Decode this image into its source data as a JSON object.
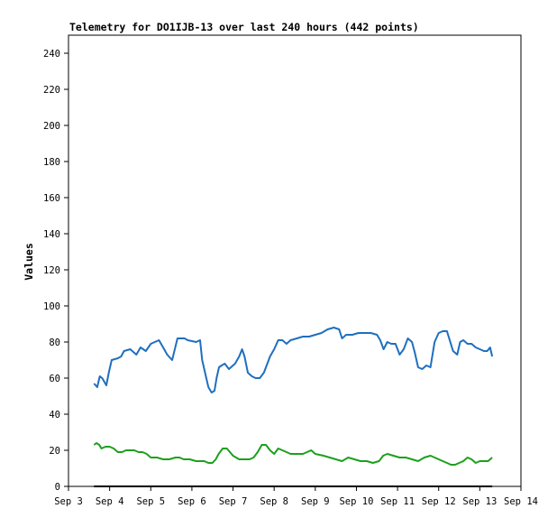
{
  "chart_data": {
    "type": "line",
    "title": "Telemetry for DO1IJB-13 over last 240 hours (442 points)",
    "xlabel": "",
    "ylabel": "Values",
    "xlim": [
      3.0,
      14.0
    ],
    "ylim": [
      0,
      250
    ],
    "x_unit": "day of September",
    "x_tick_values": [
      3,
      4,
      5,
      6,
      7,
      8,
      9,
      10,
      11,
      12,
      13,
      14
    ],
    "x_tick_labels": [
      "Sep 3",
      "Sep 4",
      "Sep 5",
      "Sep 6",
      "Sep 7",
      "Sep 8",
      "Sep 9",
      "Sep 10",
      "Sep 11",
      "Sep 12",
      "Sep 13",
      "Sep 14"
    ],
    "y_ticks": [
      0,
      20,
      40,
      60,
      80,
      100,
      120,
      140,
      160,
      180,
      200,
      220,
      240
    ],
    "grid": false,
    "legend": "none",
    "series": [
      {
        "color": "#1f6fbf",
        "x": [
          3.62,
          3.7,
          3.76,
          3.82,
          3.92,
          3.98,
          4.05,
          4.2,
          4.28,
          4.35,
          4.5,
          4.65,
          4.75,
          4.88,
          5.0,
          5.1,
          5.2,
          5.3,
          5.4,
          5.52,
          5.65,
          5.74,
          5.82,
          5.9,
          6.1,
          6.2,
          6.25,
          6.35,
          6.4,
          6.48,
          6.55,
          6.6,
          6.66,
          6.72,
          6.8,
          6.9,
          7.05,
          7.15,
          7.22,
          7.28,
          7.36,
          7.46,
          7.55,
          7.65,
          7.75,
          7.9,
          8.0,
          8.1,
          8.2,
          8.3,
          8.4,
          8.55,
          8.7,
          8.85,
          9.0,
          9.15,
          9.3,
          9.45,
          9.58,
          9.65,
          9.75,
          9.9,
          10.05,
          10.2,
          10.35,
          10.5,
          10.58,
          10.66,
          10.75,
          10.85,
          10.95,
          11.05,
          11.15,
          11.25,
          11.35,
          11.42,
          11.5,
          11.6,
          11.7,
          11.8,
          11.9,
          12.0,
          12.1,
          12.2,
          12.35,
          12.45,
          12.52,
          12.6,
          12.7,
          12.8,
          12.9,
          13.0,
          13.1,
          13.18,
          13.25,
          13.3
        ],
        "values": [
          57,
          55,
          61,
          60,
          56,
          63,
          70,
          71,
          72,
          75,
          76,
          73,
          77,
          75,
          79,
          80,
          81,
          77,
          73,
          70,
          82,
          82,
          82,
          81,
          80,
          81,
          70,
          60,
          55,
          52,
          53,
          60,
          66,
          67,
          68,
          65,
          68,
          72,
          76,
          72,
          63,
          61,
          60,
          60,
          63,
          72,
          76,
          81,
          81,
          79,
          81,
          82,
          83,
          83,
          84,
          85,
          87,
          88,
          87,
          82,
          84,
          84,
          85,
          85,
          85,
          84,
          81,
          76,
          80,
          79,
          79,
          73,
          76,
          82,
          80,
          74,
          66,
          65,
          67,
          66,
          80,
          85,
          86,
          86,
          75,
          73,
          80,
          81,
          79,
          79,
          77,
          76,
          75,
          75,
          77,
          72
        ]
      },
      {
        "color": "#1ca01c",
        "x": [
          3.62,
          3.68,
          3.75,
          3.8,
          3.9,
          4.0,
          4.1,
          4.2,
          4.3,
          4.4,
          4.5,
          4.6,
          4.7,
          4.8,
          4.9,
          5.0,
          5.15,
          5.3,
          5.45,
          5.6,
          5.7,
          5.8,
          5.95,
          6.1,
          6.2,
          6.3,
          6.4,
          6.5,
          6.58,
          6.65,
          6.75,
          6.85,
          7.0,
          7.15,
          7.3,
          7.4,
          7.5,
          7.6,
          7.7,
          7.8,
          7.9,
          8.0,
          8.1,
          8.2,
          8.4,
          8.55,
          8.7,
          8.8,
          8.9,
          9.0,
          9.2,
          9.35,
          9.5,
          9.65,
          9.8,
          9.95,
          10.1,
          10.25,
          10.4,
          10.55,
          10.65,
          10.75,
          10.9,
          11.05,
          11.2,
          11.35,
          11.5,
          11.65,
          11.8,
          11.9,
          12.0,
          12.1,
          12.2,
          12.3,
          12.4,
          12.5,
          12.6,
          12.7,
          12.8,
          12.9,
          13.0,
          13.1,
          13.2,
          13.3
        ],
        "values": [
          23,
          24,
          23,
          21,
          22,
          22,
          21,
          19,
          19,
          20,
          20,
          20,
          19,
          19,
          18,
          16,
          16,
          15,
          15,
          16,
          16,
          15,
          15,
          14,
          14,
          14,
          13,
          13,
          15,
          18,
          21,
          21,
          17,
          15,
          15,
          15,
          16,
          19,
          23,
          23,
          20,
          18,
          21,
          20,
          18,
          18,
          18,
          19,
          20,
          18,
          17,
          16,
          15,
          14,
          16,
          15,
          14,
          14,
          13,
          14,
          17,
          18,
          17,
          16,
          16,
          15,
          14,
          16,
          17,
          16,
          15,
          14,
          13,
          12,
          12,
          13,
          14,
          16,
          15,
          13,
          14,
          14,
          14,
          16
        ]
      },
      {
        "color": "#000000",
        "x": [
          3.62,
          13.3
        ],
        "values": [
          0,
          0
        ]
      }
    ]
  }
}
